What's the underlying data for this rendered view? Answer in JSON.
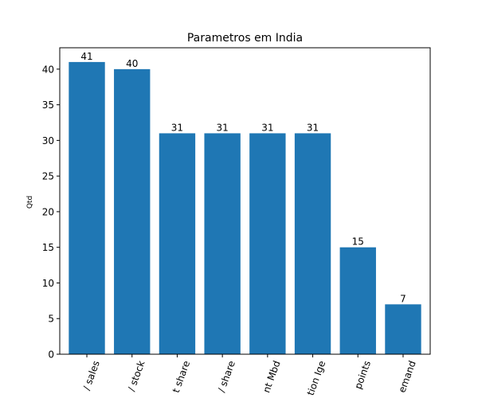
{
  "chart_data": {
    "type": "bar",
    "title": "Parametros em India",
    "xlabel": "",
    "ylabel": "Qtd",
    "categories": [
      "/ sales",
      "/ stock",
      "t share",
      "/ share",
      "nt Mbd",
      "tion Ige",
      "points",
      "emand"
    ],
    "values": [
      41,
      40,
      31,
      31,
      31,
      31,
      15,
      7
    ],
    "data_labels": [
      "41",
      "40",
      "31",
      "31",
      "31",
      "31",
      "15",
      "7"
    ],
    "ylim": [
      0,
      43
    ],
    "yticks": [
      0,
      5,
      10,
      15,
      20,
      25,
      30,
      35,
      40
    ],
    "grid": false,
    "legend": "none",
    "bar_color": "#1f77b4"
  }
}
